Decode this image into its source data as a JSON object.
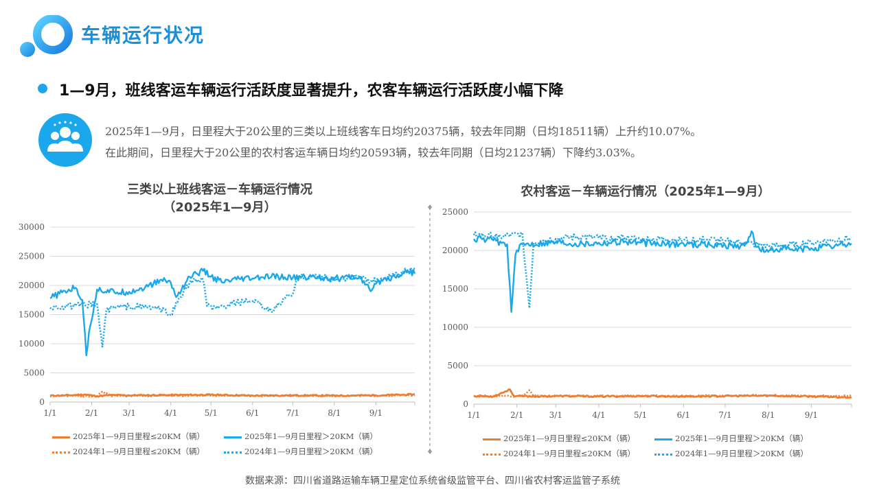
{
  "header": {
    "title": "车辆运行状况"
  },
  "headline": "1—9月，班线客运车辆运行活跃度显著提升，农客车辆运行活跃度小幅下降",
  "summary": {
    "line1": "2025年1—9月，日里程大于20公里的三类以上班线客车日均约20375辆，较去年同期（日均18511辆）上升约10.07%。",
    "line2": "在此期间，日里程大于20公里的农村客运车辆日均约20593辆，较去年同期（日均21237辆）下降约3.03%。"
  },
  "source": "数据来源：四川省道路运输车辆卫星定位系统省级监管平台、四川省农村客运监管子系统",
  "colors": {
    "blue": "#1aa7ec",
    "orange": "#ed7d31",
    "title_blue": "#1a90d8"
  },
  "icons": {
    "logo": "ring-logo-icon",
    "badge": "people-group-icon"
  },
  "chart_data": [
    {
      "type": "line",
      "title_line1": "三类以上班线客运－车辆运行情况",
      "title_line2": "（2025年1—9月）",
      "xlim": [
        "1/1",
        "9/30"
      ],
      "ylim": [
        0,
        30000
      ],
      "yticks": [
        "30000",
        "25000",
        "20000",
        "15000",
        "10000",
        "5000",
        "0"
      ],
      "xticks": [
        "1/1",
        "2/1",
        "3/1",
        "4/1",
        "5/1",
        "6/1",
        "7/1",
        "8/1",
        "9/1"
      ],
      "legend_placement": "bottom",
      "series": [
        {
          "name": "2025年1—9月日里程≤20KM（辆）",
          "style": "solid",
          "color": "#ed7d31",
          "points": [
            [
              "1/1",
              1100
            ],
            [
              "1/15",
              1150
            ],
            [
              "1/27",
              1300
            ],
            [
              "2/5",
              1000
            ],
            [
              "2/15",
              1200
            ],
            [
              "3/1",
              1150
            ],
            [
              "4/1",
              1200
            ],
            [
              "5/1",
              1250
            ],
            [
              "6/1",
              1100
            ],
            [
              "7/1",
              1150
            ],
            [
              "8/1",
              1100
            ],
            [
              "9/1",
              1150
            ],
            [
              "9/30",
              1300
            ]
          ]
        },
        {
          "name": "2025年1—9月日里程＞20KM（辆）",
          "style": "solid",
          "color": "#1aa7ec",
          "points": [
            [
              "1/1",
              17800
            ],
            [
              "1/10",
              18800
            ],
            [
              "1/20",
              19600
            ],
            [
              "1/25",
              17500
            ],
            [
              "1/28",
              8000
            ],
            [
              "1/30",
              12000
            ],
            [
              "2/5",
              19300
            ],
            [
              "2/20",
              18800
            ],
            [
              "3/1",
              18900
            ],
            [
              "3/15",
              19800
            ],
            [
              "3/25",
              21000
            ],
            [
              "4/1",
              20500
            ],
            [
              "4/5",
              18000
            ],
            [
              "4/15",
              21500
            ],
            [
              "4/25",
              22500
            ],
            [
              "5/1",
              21500
            ],
            [
              "5/10",
              20500
            ],
            [
              "5/20",
              21000
            ],
            [
              "6/1",
              21200
            ],
            [
              "6/15",
              21500
            ],
            [
              "7/1",
              21300
            ],
            [
              "7/15",
              21500
            ],
            [
              "8/1",
              21200
            ],
            [
              "8/20",
              21500
            ],
            [
              "8/28",
              19000
            ],
            [
              "9/5",
              21000
            ],
            [
              "9/15",
              21500
            ],
            [
              "9/25",
              22500
            ],
            [
              "9/30",
              22000
            ]
          ]
        },
        {
          "name": "2024年1—9月日里程≤20KM（辆）",
          "style": "dotted",
          "color": "#ed7d31",
          "points": [
            [
              "1/1",
              1000
            ],
            [
              "1/15",
              1050
            ],
            [
              "2/5",
              1000
            ],
            [
              "2/9",
              1800
            ],
            [
              "2/15",
              1100
            ],
            [
              "3/1",
              1050
            ],
            [
              "4/1",
              1100
            ],
            [
              "5/1",
              1150
            ],
            [
              "6/1",
              1050
            ],
            [
              "7/1",
              1100
            ],
            [
              "8/1",
              1050
            ],
            [
              "9/1",
              1100
            ],
            [
              "9/30",
              1200
            ]
          ]
        },
        {
          "name": "2024年1—9月日里程＞20KM（辆）",
          "style": "dotted",
          "color": "#1aa7ec",
          "points": [
            [
              "1/1",
              16200
            ],
            [
              "1/20",
              16500
            ],
            [
              "2/5",
              16800
            ],
            [
              "2/9",
              9500
            ],
            [
              "2/12",
              15800
            ],
            [
              "2/20",
              16300
            ],
            [
              "3/1",
              16400
            ],
            [
              "3/20",
              16200
            ],
            [
              "4/1",
              15100
            ],
            [
              "4/8",
              18000
            ],
            [
              "4/15",
              20500
            ],
            [
              "4/25",
              21000
            ],
            [
              "4/28",
              16500
            ],
            [
              "5/5",
              16000
            ],
            [
              "5/20",
              17000
            ],
            [
              "6/1",
              17300
            ],
            [
              "6/15",
              15500
            ],
            [
              "6/25",
              17800
            ],
            [
              "7/1",
              18500
            ],
            [
              "7/5",
              21500
            ],
            [
              "7/20",
              21500
            ],
            [
              "8/1",
              21000
            ],
            [
              "8/20",
              21500
            ],
            [
              "8/28",
              20500
            ],
            [
              "9/5",
              21200
            ],
            [
              "9/15",
              21800
            ],
            [
              "9/25",
              22500
            ],
            [
              "9/30",
              22800
            ]
          ]
        }
      ]
    },
    {
      "type": "line",
      "title_line1": "农村客运－车辆运行情况（2025年1—9月）",
      "xlim": [
        "1/1",
        "9/30"
      ],
      "ylim": [
        0,
        25000
      ],
      "yticks": [
        "25000",
        "20000",
        "15000",
        "10000",
        "5000",
        "0"
      ],
      "xticks": [
        "1/1",
        "2/1",
        "3/1",
        "4/1",
        "5/1",
        "6/1",
        "7/1",
        "8/1",
        "9/1"
      ],
      "legend_placement": "bottom",
      "series": [
        {
          "name": "2025年1—9月日里程≤20KM（辆）",
          "style": "solid",
          "color": "#ed7d31",
          "points": [
            [
              "1/1",
              1050
            ],
            [
              "1/15",
              1000
            ],
            [
              "1/27",
              1900
            ],
            [
              "1/30",
              1050
            ],
            [
              "2/15",
              1000
            ],
            [
              "3/1",
              1050
            ],
            [
              "4/1",
              1000
            ],
            [
              "5/1",
              1050
            ],
            [
              "6/1",
              1000
            ],
            [
              "7/1",
              1050
            ],
            [
              "8/1",
              1100
            ],
            [
              "9/1",
              1000
            ],
            [
              "9/30",
              900
            ]
          ]
        },
        {
          "name": "2025年1—9月日里程＞20KM（辆）",
          "style": "solid",
          "color": "#1aa7ec",
          "points": [
            [
              "1/1",
              21500
            ],
            [
              "1/15",
              21300
            ],
            [
              "1/25",
              20800
            ],
            [
              "1/28",
              12000
            ],
            [
              "1/31",
              19500
            ],
            [
              "2/5",
              20800
            ],
            [
              "2/20",
              21000
            ],
            [
              "3/1",
              21100
            ],
            [
              "3/20",
              20900
            ],
            [
              "4/1",
              21000
            ],
            [
              "4/20",
              21200
            ],
            [
              "5/1",
              21000
            ],
            [
              "5/20",
              20800
            ],
            [
              "6/1",
              20900
            ],
            [
              "6/20",
              20700
            ],
            [
              "7/1",
              20700
            ],
            [
              "7/15",
              20600
            ],
            [
              "7/20",
              22500
            ],
            [
              "7/23",
              20500
            ],
            [
              "8/1",
              19800
            ],
            [
              "8/10",
              20300
            ],
            [
              "8/20",
              20000
            ],
            [
              "9/1",
              20300
            ],
            [
              "9/15",
              20500
            ],
            [
              "9/30",
              20900
            ]
          ]
        },
        {
          "name": "2024年1—9月日里程≤20KM（辆）",
          "style": "dotted",
          "color": "#ed7d31",
          "points": [
            [
              "1/1",
              1100
            ],
            [
              "1/20",
              1050
            ],
            [
              "2/5",
              1000
            ],
            [
              "2/10",
              1800
            ],
            [
              "2/13",
              1100
            ],
            [
              "3/1",
              1050
            ],
            [
              "4/1",
              1050
            ],
            [
              "5/1",
              1100
            ],
            [
              "6/1",
              1050
            ],
            [
              "7/1",
              1100
            ],
            [
              "8/1",
              1150
            ],
            [
              "9/1",
              1050
            ],
            [
              "9/30",
              1100
            ]
          ]
        },
        {
          "name": "2024年1—9月日里程＞20KM（辆）",
          "style": "dotted",
          "color": "#1aa7ec",
          "points": [
            [
              "1/1",
              22000
            ],
            [
              "1/20",
              21800
            ],
            [
              "2/5",
              22100
            ],
            [
              "2/10",
              12500
            ],
            [
              "2/13",
              21000
            ],
            [
              "2/20",
              21300
            ],
            [
              "3/1",
              21500
            ],
            [
              "3/20",
              21800
            ],
            [
              "4/1",
              21600
            ],
            [
              "4/20",
              21700
            ],
            [
              "5/1",
              21400
            ],
            [
              "5/20",
              21500
            ],
            [
              "6/1",
              21300
            ],
            [
              "6/20",
              21400
            ],
            [
              "7/1",
              21200
            ],
            [
              "7/15",
              21000
            ],
            [
              "8/1",
              20500
            ],
            [
              "8/15",
              20700
            ],
            [
              "9/1",
              21000
            ],
            [
              "9/15",
              21300
            ],
            [
              "9/30",
              21600
            ]
          ]
        }
      ]
    }
  ]
}
